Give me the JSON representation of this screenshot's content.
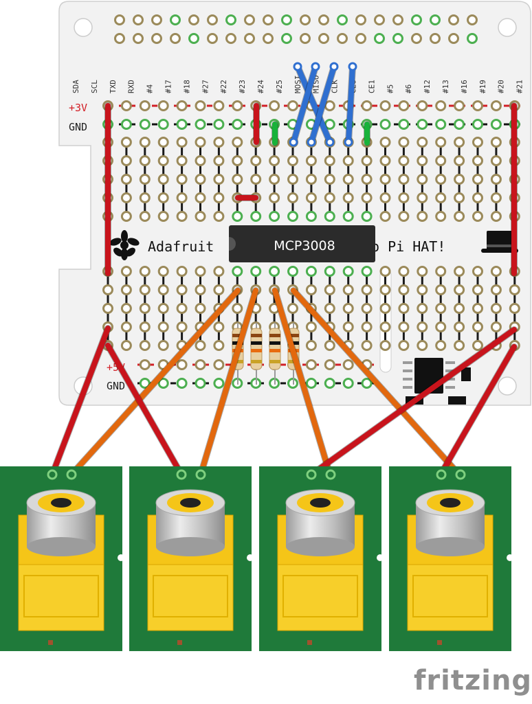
{
  "board": {
    "pin_labels": [
      "SDA",
      "SCL",
      "TXD",
      "RXD",
      "#4",
      "#17",
      "#18",
      "#27",
      "#22",
      "#23",
      "#24",
      "#25",
      "MOSI",
      "MISO",
      "CLK",
      "CE0",
      "CE1",
      "#5",
      "#6",
      "#12",
      "#13",
      "#16",
      "#19",
      "#20",
      "#21"
    ],
    "rail_top_power": "+3V",
    "rail_top_ground": "GND",
    "rail_bottom_power": "+5V",
    "rail_bottom_ground": "GND",
    "silkscreen_left": "Adafruit",
    "silkscreen_right": "o Pi HAT!",
    "chip_label": "MCP3008"
  },
  "connectors": {
    "count": 4,
    "type": "RCA jack",
    "colors": {
      "pcb": "#1f7a3a",
      "body": "#f5c518",
      "sleeve": "#c9c9c9"
    }
  },
  "wire_colors": {
    "power": "#c8141c",
    "spi": "#2f6fd0",
    "jumper": "#18b23a",
    "signal": "#e2680e"
  },
  "footer": {
    "logo_text": "fritzing"
  }
}
